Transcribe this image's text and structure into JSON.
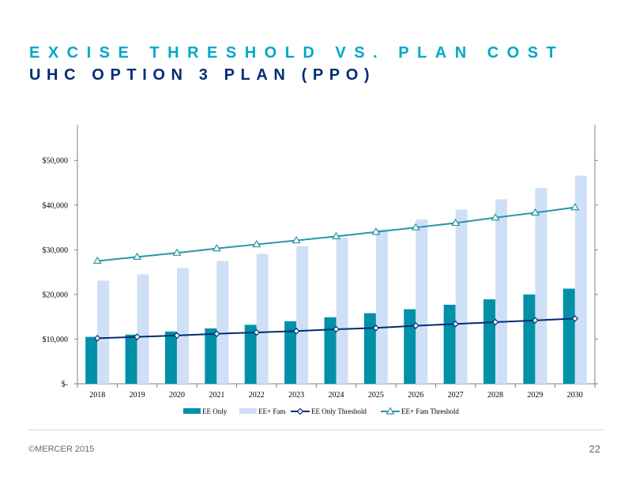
{
  "slide": {
    "title": "EXCISE THRESHOLD VS. PLAN COST",
    "subtitle": "UHC OPTION 3 PLAN (PPO)",
    "copyright": "©MERCER 2015",
    "page_number": "22"
  },
  "chart_data": {
    "type": "bar",
    "title": "",
    "xlabel": "",
    "ylabel": "",
    "ylim": [
      0,
      58000
    ],
    "y_ticks": [
      0,
      10000,
      20000,
      30000,
      40000,
      50000
    ],
    "y_tick_labels": [
      "$-",
      "$10,000",
      "$20,000",
      "$30,000",
      "$40,000",
      "$50,000"
    ],
    "categories": [
      "2018",
      "2019",
      "2020",
      "2021",
      "2022",
      "2023",
      "2024",
      "2025",
      "2026",
      "2027",
      "2028",
      "2029",
      "2030"
    ],
    "series": [
      {
        "name": "EE Only",
        "kind": "bar",
        "color": "#0090a8",
        "values": [
          10500,
          11000,
          11700,
          12400,
          13200,
          14000,
          14900,
          15800,
          16700,
          17700,
          18900,
          20000,
          21300
        ]
      },
      {
        "name": "EE+ Fam",
        "kind": "bar",
        "color": "#cfe0f6",
        "values": [
          23100,
          24500,
          25900,
          27500,
          29100,
          30800,
          32700,
          34600,
          36800,
          39000,
          41300,
          43800,
          46600
        ]
      },
      {
        "name": "EE Only Threshold",
        "kind": "line",
        "color": "#002c77",
        "marker": "diamond",
        "values": [
          10200,
          10500,
          10800,
          11200,
          11500,
          11800,
          12200,
          12500,
          13000,
          13400,
          13800,
          14200,
          14600
        ]
      },
      {
        "name": "EE+ Fam Threshold",
        "kind": "line",
        "color": "#2a94a8",
        "marker": "triangle",
        "values": [
          27500,
          28400,
          29300,
          30300,
          31200,
          32100,
          33000,
          34000,
          35000,
          36000,
          37200,
          38300,
          39500
        ]
      }
    ],
    "grid": false,
    "legend_position": "bottom"
  }
}
